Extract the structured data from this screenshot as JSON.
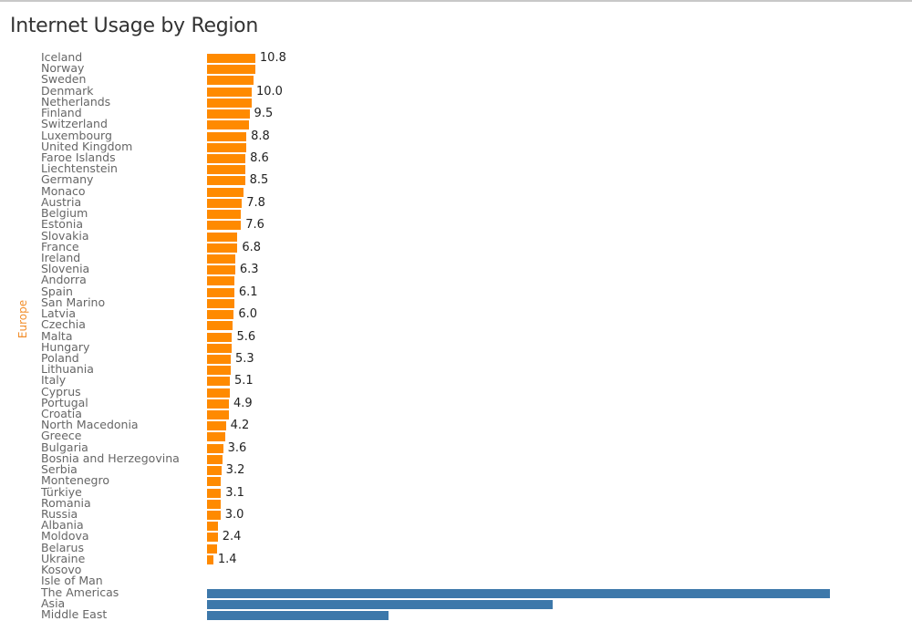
{
  "title": "Internet Usage by Region",
  "colors": {
    "europe": "#ff8a00",
    "other": "#3d78aa",
    "region_label": "#f28e2b"
  },
  "region_label": "Europe",
  "chart_data": {
    "type": "bar",
    "orientation": "horizontal",
    "title": "Internet Usage by Region",
    "xlabel": "",
    "ylabel": "Europe",
    "grid": false,
    "categories": [
      "Iceland",
      "Norway",
      "Sweden",
      "Denmark",
      "Netherlands",
      "Finland",
      "Switzerland",
      "Luxembourg",
      "United Kingdom",
      "Faroe Islands",
      "Liechtenstein",
      "Germany",
      "Monaco",
      "Austria",
      "Belgium",
      "Estonia",
      "Slovakia",
      "France",
      "Ireland",
      "Slovenia",
      "Andorra",
      "Spain",
      "San Marino",
      "Latvia",
      "Czechia",
      "Malta",
      "Hungary",
      "Poland",
      "Lithuania",
      "Italy",
      "Cyprus",
      "Portugal",
      "Croatia",
      "North Macedonia",
      "Greece",
      "Bulgaria",
      "Bosnia and Herzegovina",
      "Serbia",
      "Montenegro",
      "Türkiye",
      "Romania",
      "Russia",
      "Albania",
      "Moldova",
      "Belarus",
      "Ukraine",
      "Kosovo",
      "Isle of Man",
      "The Americas",
      "Asia",
      "Middle East"
    ],
    "series": [
      {
        "name": "Europe",
        "color": "#ff8a00",
        "values": [
          10.8,
          10.8,
          10.5,
          10.0,
          10.0,
          9.5,
          9.3,
          8.8,
          8.8,
          8.6,
          8.6,
          8.5,
          8.2,
          7.8,
          7.6,
          7.6,
          6.8,
          6.8,
          6.3,
          6.3,
          6.2,
          6.1,
          6.1,
          6.0,
          5.8,
          5.6,
          5.5,
          5.3,
          5.3,
          5.1,
          5.0,
          4.9,
          4.8,
          4.2,
          4.1,
          3.6,
          3.5,
          3.2,
          3.1,
          3.1,
          3.0,
          3.0,
          2.4,
          2.4,
          2.2,
          1.4,
          null,
          null,
          null,
          null,
          null
        ],
        "labels_shown": [
          10.8,
          null,
          null,
          10.0,
          null,
          9.5,
          null,
          8.8,
          null,
          8.6,
          null,
          8.5,
          null,
          7.8,
          null,
          7.6,
          null,
          6.8,
          null,
          6.3,
          null,
          6.1,
          null,
          6.0,
          null,
          5.6,
          null,
          5.3,
          null,
          5.1,
          null,
          4.9,
          null,
          4.2,
          null,
          3.6,
          null,
          3.2,
          null,
          3.1,
          null,
          3.0,
          null,
          2.4,
          null,
          1.4,
          null,
          null,
          null,
          null,
          null
        ]
      },
      {
        "name": "Other regions",
        "color": "#3d78aa",
        "values": [
          null,
          null,
          null,
          null,
          null,
          null,
          null,
          null,
          null,
          null,
          null,
          null,
          null,
          null,
          null,
          null,
          null,
          null,
          null,
          null,
          null,
          null,
          null,
          null,
          null,
          null,
          null,
          null,
          null,
          null,
          null,
          null,
          null,
          null,
          null,
          null,
          null,
          null,
          null,
          null,
          null,
          null,
          null,
          null,
          null,
          null,
          null,
          null,
          139.4,
          77.3,
          40.6
        ]
      }
    ]
  }
}
